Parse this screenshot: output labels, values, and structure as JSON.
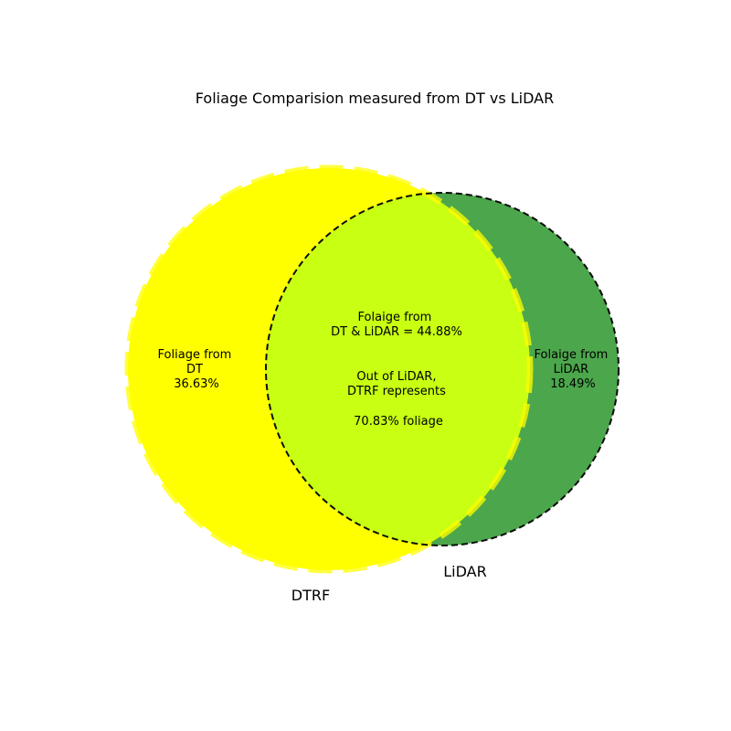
{
  "title": "Foliage Comparision measured from DT vs LiDAR",
  "sets": {
    "left": {
      "label": "DTRF",
      "color": "#ffff00",
      "edge_color": "#ffff00",
      "edge_style": "dashed"
    },
    "right": {
      "label": "LiDAR",
      "color": "#008000",
      "edge_color": "#000000",
      "edge_style": "dashed"
    }
  },
  "overlap": {
    "color": "#c8ff12"
  },
  "regions": {
    "left_only": {
      "lines": [
        "Foliage from",
        "DT",
        "36.63%"
      ],
      "value": 36.63
    },
    "right_only": {
      "lines": [
        "Folaige from",
        "LiDAR",
        "18.49%"
      ],
      "value": 18.49
    },
    "both": {
      "lines": [
        "Folaige from",
        "DT & LiDAR = 44.88%"
      ],
      "value": 44.88
    }
  },
  "annotation": {
    "lines": [
      "Out of LiDAR,",
      "DTRF represents",
      "",
      "70.83%  foliage"
    ],
    "value": 70.83
  }
}
